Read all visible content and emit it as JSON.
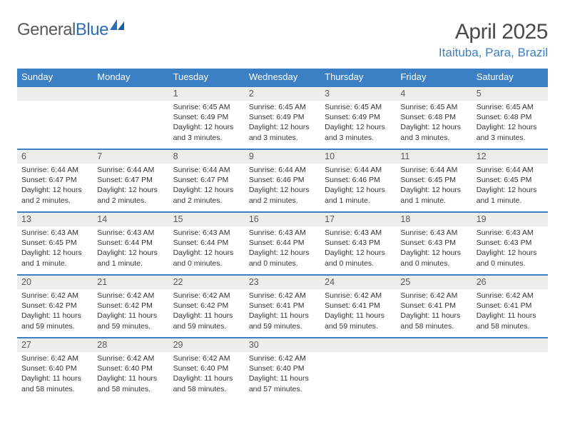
{
  "logo": {
    "part1": "General",
    "part2": "Blue"
  },
  "title": "April 2025",
  "location": "Itaituba, Para, Brazil",
  "colors": {
    "header_bg": "#3b7fc4",
    "header_text": "#ffffff",
    "daynum_bg": "#eceded",
    "border_top": "#3b7fc4",
    "body_text": "#333333",
    "title_text": "#4a4a4a",
    "location_text": "#3b7fc4"
  },
  "weekdays": [
    "Sunday",
    "Monday",
    "Tuesday",
    "Wednesday",
    "Thursday",
    "Friday",
    "Saturday"
  ],
  "weeks": [
    [
      null,
      null,
      {
        "n": "1",
        "sr": "Sunrise: 6:45 AM",
        "ss": "Sunset: 6:49 PM",
        "dl": "Daylight: 12 hours and 3 minutes."
      },
      {
        "n": "2",
        "sr": "Sunrise: 6:45 AM",
        "ss": "Sunset: 6:49 PM",
        "dl": "Daylight: 12 hours and 3 minutes."
      },
      {
        "n": "3",
        "sr": "Sunrise: 6:45 AM",
        "ss": "Sunset: 6:49 PM",
        "dl": "Daylight: 12 hours and 3 minutes."
      },
      {
        "n": "4",
        "sr": "Sunrise: 6:45 AM",
        "ss": "Sunset: 6:48 PM",
        "dl": "Daylight: 12 hours and 3 minutes."
      },
      {
        "n": "5",
        "sr": "Sunrise: 6:45 AM",
        "ss": "Sunset: 6:48 PM",
        "dl": "Daylight: 12 hours and 3 minutes."
      }
    ],
    [
      {
        "n": "6",
        "sr": "Sunrise: 6:44 AM",
        "ss": "Sunset: 6:47 PM",
        "dl": "Daylight: 12 hours and 2 minutes."
      },
      {
        "n": "7",
        "sr": "Sunrise: 6:44 AM",
        "ss": "Sunset: 6:47 PM",
        "dl": "Daylight: 12 hours and 2 minutes."
      },
      {
        "n": "8",
        "sr": "Sunrise: 6:44 AM",
        "ss": "Sunset: 6:47 PM",
        "dl": "Daylight: 12 hours and 2 minutes."
      },
      {
        "n": "9",
        "sr": "Sunrise: 6:44 AM",
        "ss": "Sunset: 6:46 PM",
        "dl": "Daylight: 12 hours and 2 minutes."
      },
      {
        "n": "10",
        "sr": "Sunrise: 6:44 AM",
        "ss": "Sunset: 6:46 PM",
        "dl": "Daylight: 12 hours and 1 minute."
      },
      {
        "n": "11",
        "sr": "Sunrise: 6:44 AM",
        "ss": "Sunset: 6:45 PM",
        "dl": "Daylight: 12 hours and 1 minute."
      },
      {
        "n": "12",
        "sr": "Sunrise: 6:44 AM",
        "ss": "Sunset: 6:45 PM",
        "dl": "Daylight: 12 hours and 1 minute."
      }
    ],
    [
      {
        "n": "13",
        "sr": "Sunrise: 6:43 AM",
        "ss": "Sunset: 6:45 PM",
        "dl": "Daylight: 12 hours and 1 minute."
      },
      {
        "n": "14",
        "sr": "Sunrise: 6:43 AM",
        "ss": "Sunset: 6:44 PM",
        "dl": "Daylight: 12 hours and 1 minute."
      },
      {
        "n": "15",
        "sr": "Sunrise: 6:43 AM",
        "ss": "Sunset: 6:44 PM",
        "dl": "Daylight: 12 hours and 0 minutes."
      },
      {
        "n": "16",
        "sr": "Sunrise: 6:43 AM",
        "ss": "Sunset: 6:44 PM",
        "dl": "Daylight: 12 hours and 0 minutes."
      },
      {
        "n": "17",
        "sr": "Sunrise: 6:43 AM",
        "ss": "Sunset: 6:43 PM",
        "dl": "Daylight: 12 hours and 0 minutes."
      },
      {
        "n": "18",
        "sr": "Sunrise: 6:43 AM",
        "ss": "Sunset: 6:43 PM",
        "dl": "Daylight: 12 hours and 0 minutes."
      },
      {
        "n": "19",
        "sr": "Sunrise: 6:43 AM",
        "ss": "Sunset: 6:43 PM",
        "dl": "Daylight: 12 hours and 0 minutes."
      }
    ],
    [
      {
        "n": "20",
        "sr": "Sunrise: 6:42 AM",
        "ss": "Sunset: 6:42 PM",
        "dl": "Daylight: 11 hours and 59 minutes."
      },
      {
        "n": "21",
        "sr": "Sunrise: 6:42 AM",
        "ss": "Sunset: 6:42 PM",
        "dl": "Daylight: 11 hours and 59 minutes."
      },
      {
        "n": "22",
        "sr": "Sunrise: 6:42 AM",
        "ss": "Sunset: 6:42 PM",
        "dl": "Daylight: 11 hours and 59 minutes."
      },
      {
        "n": "23",
        "sr": "Sunrise: 6:42 AM",
        "ss": "Sunset: 6:41 PM",
        "dl": "Daylight: 11 hours and 59 minutes."
      },
      {
        "n": "24",
        "sr": "Sunrise: 6:42 AM",
        "ss": "Sunset: 6:41 PM",
        "dl": "Daylight: 11 hours and 59 minutes."
      },
      {
        "n": "25",
        "sr": "Sunrise: 6:42 AM",
        "ss": "Sunset: 6:41 PM",
        "dl": "Daylight: 11 hours and 58 minutes."
      },
      {
        "n": "26",
        "sr": "Sunrise: 6:42 AM",
        "ss": "Sunset: 6:41 PM",
        "dl": "Daylight: 11 hours and 58 minutes."
      }
    ],
    [
      {
        "n": "27",
        "sr": "Sunrise: 6:42 AM",
        "ss": "Sunset: 6:40 PM",
        "dl": "Daylight: 11 hours and 58 minutes."
      },
      {
        "n": "28",
        "sr": "Sunrise: 6:42 AM",
        "ss": "Sunset: 6:40 PM",
        "dl": "Daylight: 11 hours and 58 minutes."
      },
      {
        "n": "29",
        "sr": "Sunrise: 6:42 AM",
        "ss": "Sunset: 6:40 PM",
        "dl": "Daylight: 11 hours and 58 minutes."
      },
      {
        "n": "30",
        "sr": "Sunrise: 6:42 AM",
        "ss": "Sunset: 6:40 PM",
        "dl": "Daylight: 11 hours and 57 minutes."
      },
      null,
      null,
      null
    ]
  ]
}
